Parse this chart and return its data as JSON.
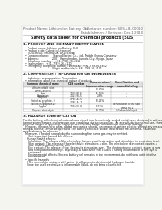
{
  "background_color": "#f5f5f0",
  "page_bg": "#ffffff",
  "text_color": "#222222",
  "gray_text": "#666666",
  "header_left": "Product Name: Lithium Ion Battery Cell",
  "header_right": "Substance number: SDS-LIB-00010\nEstablishment / Revision: Dec.1 2010",
  "title": "Safety data sheet for chemical products (SDS)",
  "s1_title": "1. PRODUCT AND COMPANY IDENTIFICATION",
  "s1_lines": [
    "  • Product name: Lithium Ion Battery Cell",
    "  • Product code: Cylindrical-type cell",
    "      (UR18650J, UR18650A, UR18650A)",
    "  • Company name:      Sanyo Electric Co., Ltd., Mobile Energy Company",
    "  • Address:                2001  Kamishinden, Sumoto-City, Hyogo, Japan",
    "  • Telephone number:   +81-(799)-26-4111",
    "  • Fax number:   +81-(799)-26-4120",
    "  • Emergency telephone number (Weekday): +81-799-26-3862",
    "                                   (Night and holiday): +81-799-26-4101"
  ],
  "s2_title": "2. COMPOSITION / INFORMATION ON INGREDIENTS",
  "s2_sub1": "  • Substance or preparation: Preparation",
  "s2_sub2": "  • Information about the chemical nature of product:",
  "table_col_labels": [
    "Common chemical name",
    "CAS number",
    "Concentration /\nConcentration range",
    "Classification and\nhazard labeling"
  ],
  "table_rows": [
    [
      "Lithium cobalt oxide\n(LiMn-CoO2(s))",
      "-",
      "30-40%",
      ""
    ],
    [
      "Iron",
      "7439-89-6",
      "15-25%",
      "-"
    ],
    [
      "Aluminum",
      "7429-90-5",
      "2-6%",
      "-"
    ],
    [
      "Graphite\n(listed as graphite-1)\n(All Mo as graphite-1)",
      "7782-42-5\n7782-44-7",
      "10-25%",
      ""
    ],
    [
      "Copper",
      "7440-50-8",
      "5-15%",
      "Sensitization of the skin\ngroup Ra 2"
    ],
    [
      "Organic electrolyte",
      "-",
      "10-20%",
      "Inflammable liquid"
    ]
  ],
  "s3_title": "3. HAZARDS IDENTIFICATION",
  "s3_para1": "For the battery cell, chemical materials are stored in a hermetically sealed metal case, designed to withstand\ntemperature changes and pressure-load conditions during normal use. As a result, during normal use, there is no\nphysical danger of ignition or explosion and therefor danger of hazardous materials leakage.",
  "s3_para2": "  However, if exposed to a fire, added mechanical shocks, decomposed, written electric without any measure,\nthe gas release cannot be operated. The battery cell case will be breached of fire-performs, hazardous\nmaterials may be released.",
  "s3_para3": "  Moreover, if heated strongly by the surrounding fire, some gas may be emitted.",
  "s3_bullet1_title": "  • Most important hazard and effects:",
  "s3_bullet1_sub": "    Human health effects:\n      Inhalation: The release of the electrolyte has an anesthesia action and stimulates in respiratory tract.\n      Skin contact: The release of the electrolyte stimulates a skin. The electrolyte skin contact causes a\n      sore and stimulation on the skin.\n      Eye contact: The release of the electrolyte stimulates eyes. The electrolyte eye contact causes a sore\n      and stimulation on the eye. Especially, a substance that causes a strong inflammation of the eye is\n      contained.\n      Environmental effects: Since a battery cell remains in the environment, do not throw out it into the\n      environment.",
  "s3_bullet2_title": "  • Specific hazards:",
  "s3_bullet2_sub": "    If the electrolyte contacts with water, it will generate detrimental hydrogen fluoride.\n    Since the used electrolyte is inflammable liquid, do not bring close to fire."
}
